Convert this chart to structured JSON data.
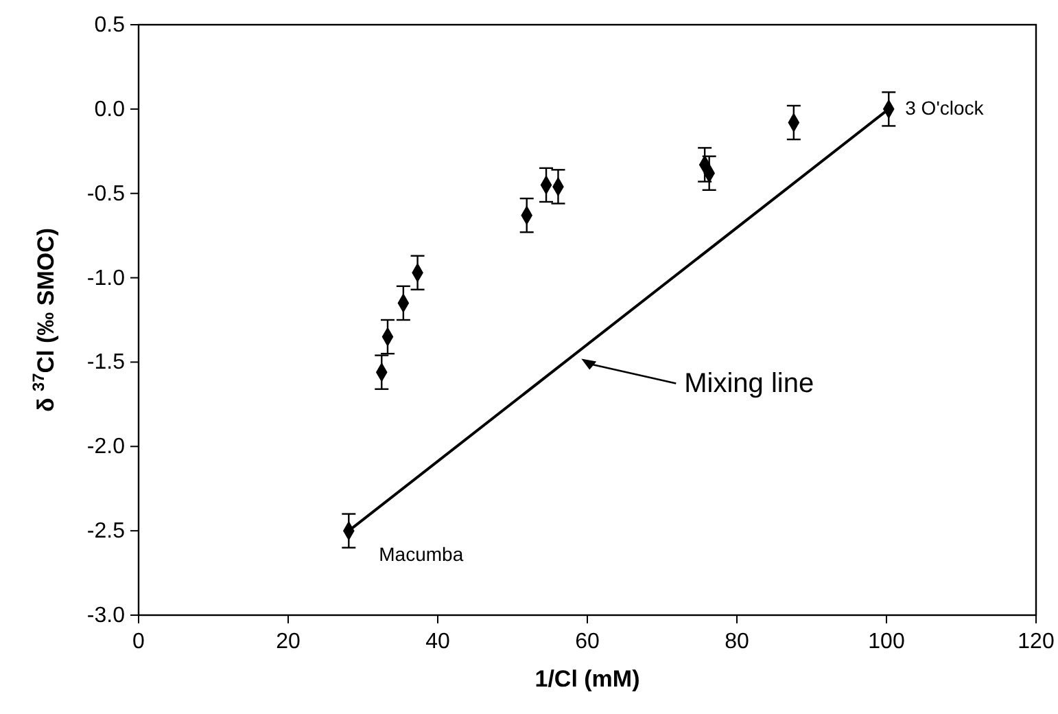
{
  "chart_data": {
    "type": "scatter",
    "xlabel": "1/Cl (mM)",
    "ylabel": "δ $^{37}$Cl (‰ SMOC)",
    "xlim": [
      0,
      120
    ],
    "xticks": [
      0,
      20,
      40,
      60,
      80,
      100,
      120
    ],
    "ylim": [
      -3,
      0.5
    ],
    "yticks": [
      {
        "value": -3,
        "label": "-3.0"
      },
      {
        "value": -2.5,
        "label": "-2.5"
      },
      {
        "value": -2,
        "label": "-2.0"
      },
      {
        "value": -1.5,
        "label": "-1.5"
      },
      {
        "value": -1,
        "label": "-1.0"
      },
      {
        "value": -0.5,
        "label": "-0.5"
      },
      {
        "value": 0,
        "label": "0.0"
      },
      {
        "value": 0.5,
        "label": "0.5"
      }
    ],
    "grid": false,
    "series": [
      {
        "type": "line",
        "color": "#000000",
        "x": [
          28.1,
          100.3
        ],
        "values": [
          -2.5,
          0
        ]
      },
      {
        "marker": "diamond",
        "color": "#000000",
        "x": [
          28.1,
          32.5,
          33.3,
          35.4,
          37.3,
          51.9,
          54.5,
          56.1,
          75.7,
          76.3,
          87.6,
          100.3
        ],
        "values": [
          -2.5,
          -1.56,
          -1.35,
          -1.15,
          -0.97,
          -0.63,
          -0.45,
          -0.46,
          -0.33,
          -0.38,
          -0.08,
          0
        ],
        "errors": [
          0.1,
          0.1,
          0.1,
          0.1,
          0.1,
          0.1,
          0.1,
          0.1,
          0.1,
          0.1,
          0.1,
          0.1
        ]
      }
    ],
    "annotations": [
      {
        "text": "Macumba",
        "x": 28.1,
        "y": -2.5
      },
      {
        "text": "3 O'clock",
        "x": 100.3,
        "y": 0
      },
      {
        "text": "Mixing line",
        "x": 59.2,
        "y": -1.48
      }
    ]
  }
}
